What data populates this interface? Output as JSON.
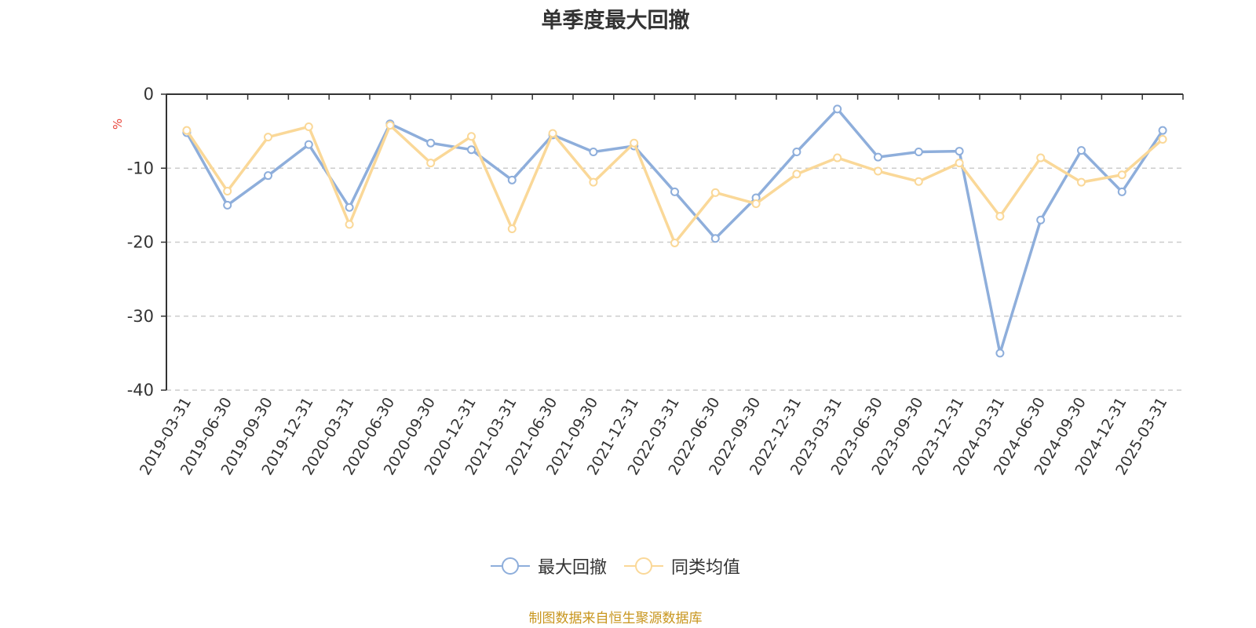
{
  "title": "单季度最大回撤",
  "unit": "%",
  "source": "制图数据来自恒生聚源数据库",
  "colors": {
    "series1": "#8eaedb",
    "series2": "#fad898",
    "unit": "#e8443a",
    "source": "#c8961e"
  },
  "legend": [
    {
      "label": "最大回撤",
      "icon": "circle-line-icon"
    },
    {
      "label": "同类均值",
      "icon": "circle-line-icon"
    }
  ],
  "chart_data": {
    "type": "line",
    "title": "单季度最大回撤",
    "ylabel": "%",
    "ylim": [
      -40,
      0
    ],
    "yticks": [
      0,
      -10,
      -20,
      -30,
      -40
    ],
    "grid": true,
    "legend_position": "bottom",
    "categories": [
      "2019-03-31",
      "2019-06-30",
      "2019-09-30",
      "2019-12-31",
      "2020-03-31",
      "2020-06-30",
      "2020-09-30",
      "2020-12-31",
      "2021-03-31",
      "2021-06-30",
      "2021-09-30",
      "2021-12-31",
      "2022-03-31",
      "2022-06-30",
      "2022-09-30",
      "2022-12-31",
      "2023-03-31",
      "2023-06-30",
      "2023-09-30",
      "2023-12-31",
      "2024-03-31",
      "2024-06-30",
      "2024-09-30",
      "2024-12-31",
      "2025-03-31"
    ],
    "series": [
      {
        "name": "最大回撤",
        "values": [
          -5.2,
          -15.0,
          -11.0,
          -6.8,
          -15.3,
          -4.0,
          -6.6,
          -7.5,
          -11.6,
          -5.5,
          -7.8,
          -7.0,
          -13.2,
          -19.5,
          -14.0,
          -7.8,
          -2.0,
          -8.5,
          -7.8,
          -7.7,
          -35.0,
          -17.0,
          -7.6,
          -13.2,
          -4.9
        ]
      },
      {
        "name": "同类均值",
        "values": [
          -4.9,
          -13.1,
          -5.8,
          -4.4,
          -17.6,
          -4.2,
          -9.3,
          -5.7,
          -18.2,
          -5.3,
          -11.9,
          -6.6,
          -20.1,
          -13.3,
          -14.8,
          -10.8,
          -8.6,
          -10.4,
          -11.8,
          -9.3,
          -16.5,
          -8.6,
          -11.9,
          -10.9,
          -6.1
        ]
      }
    ]
  }
}
